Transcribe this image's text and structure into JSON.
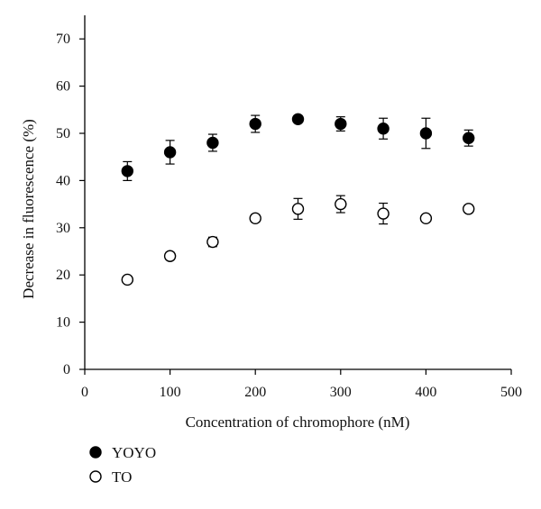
{
  "colors": {
    "axis": "#000000",
    "filled_marker": "#000000",
    "open_marker_fill": "#ffffff",
    "open_marker_stroke": "#000000"
  },
  "chart_data": {
    "type": "scatter",
    "title": "",
    "xlabel": "Concentration of chromophore (nM)",
    "ylabel": "Decrease in fluorescence (%)",
    "xlim": [
      0,
      500
    ],
    "ylim": [
      0,
      75
    ],
    "xticks": [
      0,
      100,
      200,
      300,
      400,
      500
    ],
    "yticks": [
      0,
      10,
      20,
      30,
      40,
      50,
      60,
      70
    ],
    "grid": false,
    "legend_placement": "bottom-left, below axes",
    "series": [
      {
        "name": "YOYO",
        "marker": "filled-circle",
        "points": [
          {
            "x": 50,
            "y": 42,
            "err": 2
          },
          {
            "x": 100,
            "y": 46,
            "err": 2.5
          },
          {
            "x": 150,
            "y": 48,
            "err": 1.8
          },
          {
            "x": 200,
            "y": 52,
            "err": 1.8
          },
          {
            "x": 250,
            "y": 53,
            "err": 0.6
          },
          {
            "x": 300,
            "y": 52,
            "err": 1.5
          },
          {
            "x": 350,
            "y": 51,
            "err": 2.2
          },
          {
            "x": 400,
            "y": 50,
            "err": 3.2
          },
          {
            "x": 450,
            "y": 49,
            "err": 1.7
          }
        ]
      },
      {
        "name": "TO",
        "marker": "open-circle",
        "points": [
          {
            "x": 50,
            "y": 19,
            "err": 0.6
          },
          {
            "x": 100,
            "y": 24,
            "err": 0.8
          },
          {
            "x": 150,
            "y": 27,
            "err": 1.0
          },
          {
            "x": 200,
            "y": 32,
            "err": 0.8
          },
          {
            "x": 250,
            "y": 34,
            "err": 2.2
          },
          {
            "x": 300,
            "y": 35,
            "err": 1.8
          },
          {
            "x": 350,
            "y": 33,
            "err": 2.2
          },
          {
            "x": 400,
            "y": 32,
            "err": 0.6
          },
          {
            "x": 450,
            "y": 34,
            "err": 0.8
          }
        ]
      }
    ]
  }
}
